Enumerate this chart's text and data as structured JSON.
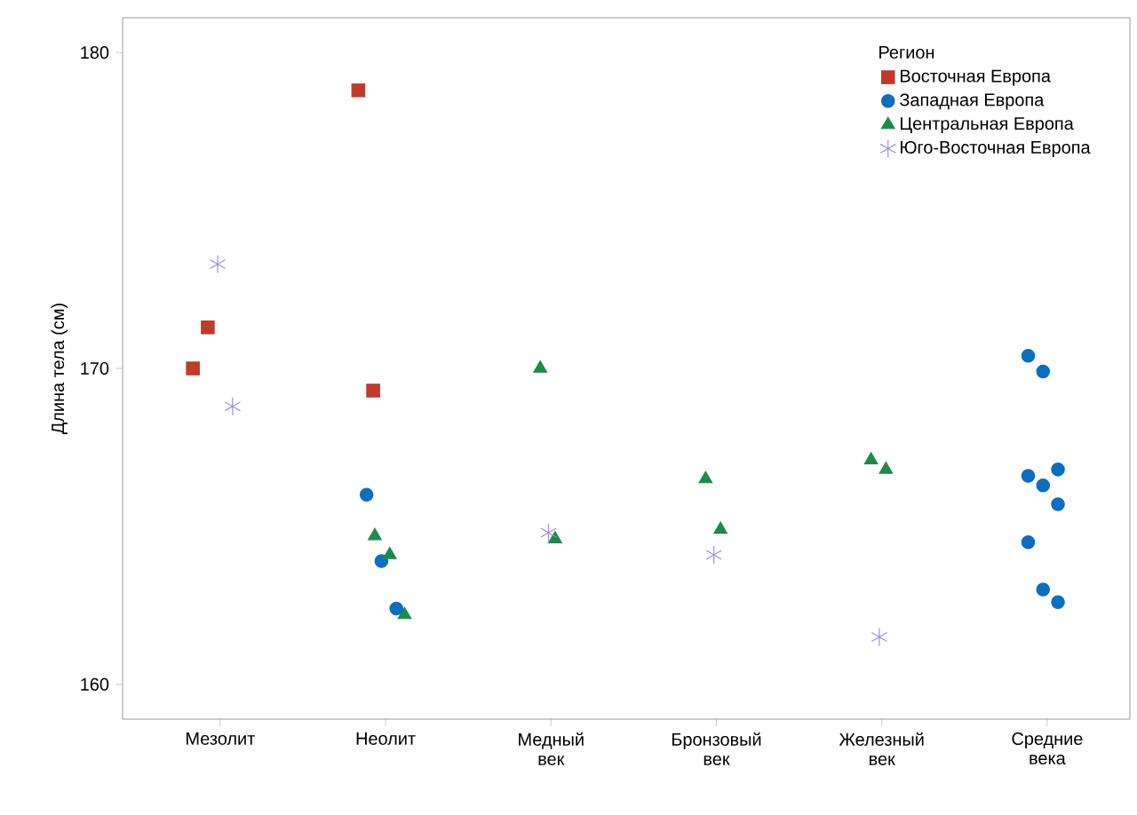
{
  "chart_data": {
    "type": "scatter",
    "ylabel": "Длина тела (см)",
    "legend_title": "Регион",
    "legend": "top right",
    "grid": false,
    "categories": [
      "Мезолит",
      "Неолит",
      "Медный век",
      "Бронзовый век",
      "Железный век",
      "Средние века"
    ],
    "ylim": [
      158.9,
      181.1
    ],
    "yticks": [
      160,
      170,
      180
    ],
    "series": [
      {
        "name": "Восточная Европа",
        "color": "#c23a2a",
        "marker": "square",
        "x": [
          "Мезолит",
          "Мезолит",
          "Неолит",
          "Неолит"
        ],
        "values": [
          170.0,
          171.3,
          178.8,
          169.3
        ]
      },
      {
        "name": "Западная Европа",
        "color": "#0a6fc2",
        "marker": "circle",
        "x": [
          "Неолит",
          "Неолит",
          "Неолит",
          "Средние века",
          "Средние века",
          "Средние века",
          "Средние века",
          "Средние века",
          "Средние века",
          "Средние века",
          "Средние века",
          "Средние века"
        ],
        "values": [
          166.0,
          163.9,
          162.4,
          170.4,
          169.9,
          166.8,
          166.6,
          166.3,
          165.7,
          164.5,
          163.0,
          162.6
        ]
      },
      {
        "name": "Центральная Европа",
        "color": "#1e8a4c",
        "marker": "triangle",
        "x": [
          "Неолит",
          "Неолит",
          "Неолит",
          "Медный век",
          "Медный век",
          "Бронзовый век",
          "Бронзовый век",
          "Железный век",
          "Железный век"
        ],
        "values": [
          164.7,
          164.1,
          162.2,
          170.0,
          164.6,
          166.5,
          164.9,
          167.1,
          166.8
        ]
      },
      {
        "name": "Юго-Восточная Европа",
        "color": "#9a93d6",
        "marker": "cross",
        "x": [
          "Мезолит",
          "Мезолит",
          "Медный век",
          "Бронзовый век",
          "Железный век"
        ],
        "values": [
          173.3,
          168.8,
          164.8,
          164.1,
          161.5
        ]
      }
    ]
  }
}
